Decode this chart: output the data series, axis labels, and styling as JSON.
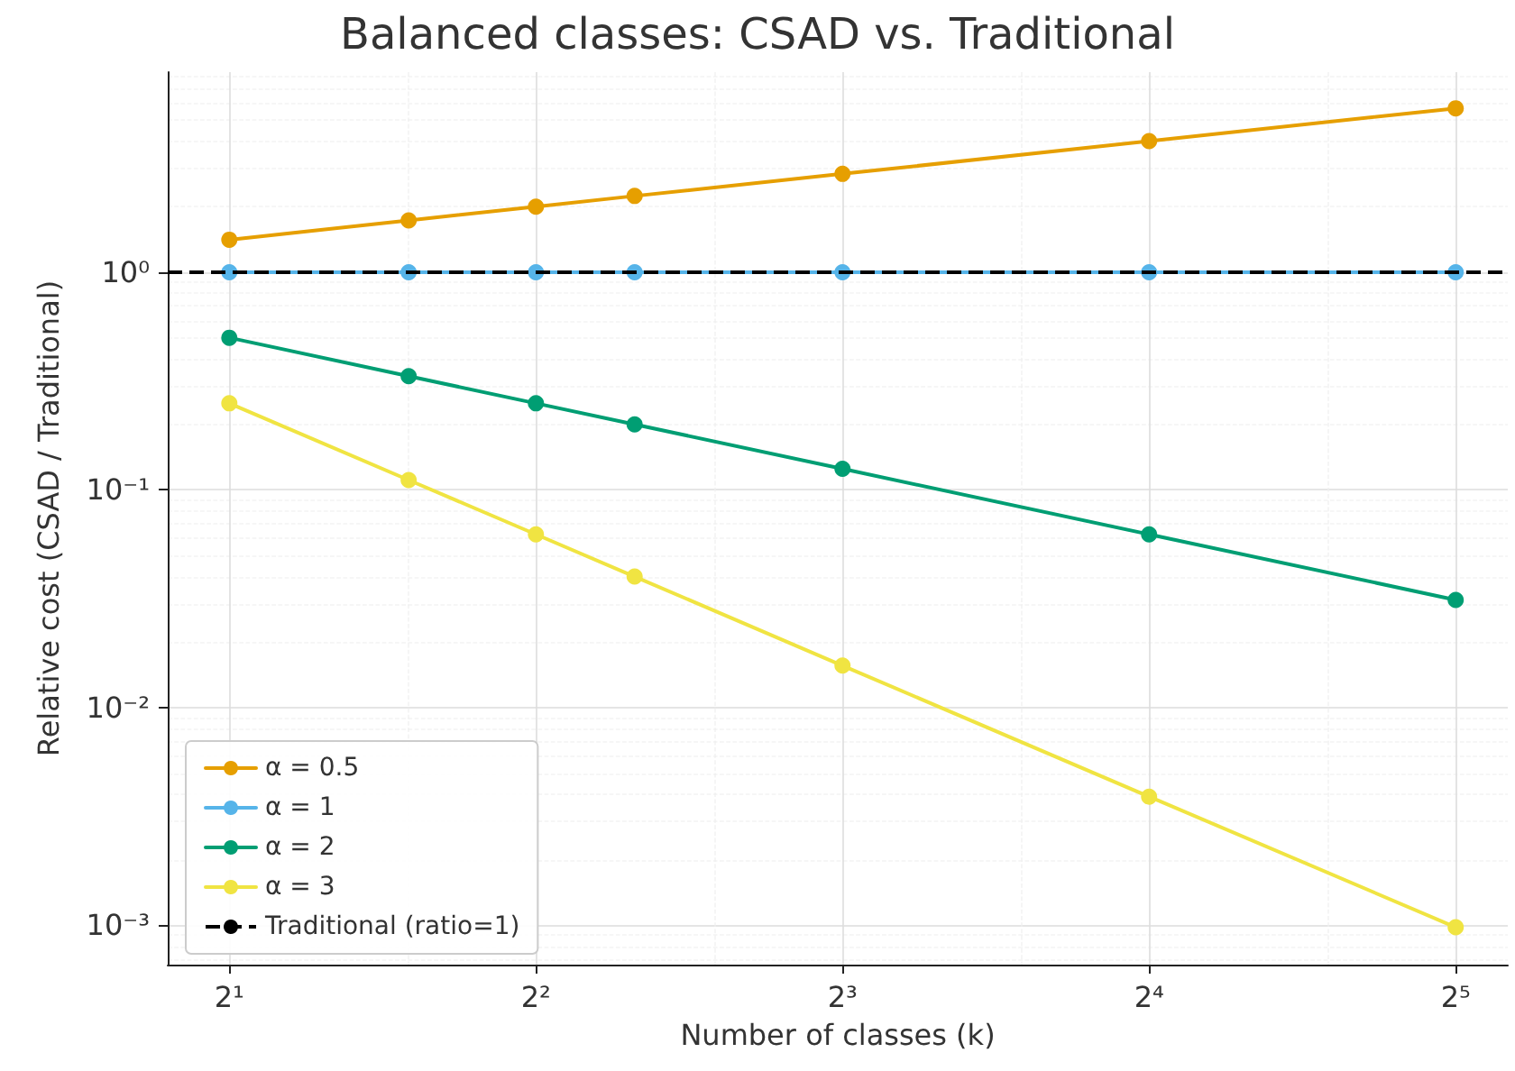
{
  "chart_data": {
    "type": "line",
    "title": "Balanced classes: CSAD vs. Traditional",
    "xlabel": "Number of classes (k)",
    "ylabel": "Relative cost (CSAD / Traditional)",
    "log": "xy",
    "grid": true,
    "legend": "bottom left",
    "marker": "circle",
    "line_style": "solid",
    "x": [
      2,
      3,
      4,
      5,
      8,
      16,
      32
    ],
    "xlim": [
      1.74,
      36
    ],
    "xticks": [
      {
        "value": 2,
        "label": "2¹"
      },
      {
        "value": 4,
        "label": "2²"
      },
      {
        "value": 8,
        "label": "2³"
      },
      {
        "value": 16,
        "label": "2⁴"
      },
      {
        "value": 32,
        "label": "2⁵"
      }
    ],
    "ylim": [
      0.00066,
      8.3
    ],
    "yticks": [
      {
        "value": 0.001,
        "label": "10⁻³"
      },
      {
        "value": 0.01,
        "label": "10⁻²"
      },
      {
        "value": 0.1,
        "label": "10⁻¹"
      },
      {
        "value": 1,
        "label": "10⁰"
      }
    ],
    "series": [
      {
        "name": "α = 0.5",
        "color": "#e69f00",
        "values": [
          1.41,
          1.73,
          2,
          2.24,
          2.83,
          4,
          5.66
        ]
      },
      {
        "name": "α = 1",
        "color": "#56b4e9",
        "values": [
          1,
          1,
          1,
          1,
          1,
          1,
          1
        ]
      },
      {
        "name": "α = 2",
        "color": "#009e73",
        "values": [
          0.5,
          0.333,
          0.25,
          0.2,
          0.125,
          0.0625,
          0.03125
        ]
      },
      {
        "name": "α = 3",
        "color": "#f0e442",
        "values": [
          0.25,
          0.111,
          0.0625,
          0.04,
          0.0156,
          0.0039,
          0.00098
        ]
      }
    ],
    "ref_lines": [
      {
        "axis": "y",
        "value": 1,
        "label": "Traditional (ratio=1)",
        "color": "#000000",
        "line_style": "dashed"
      }
    ]
  }
}
